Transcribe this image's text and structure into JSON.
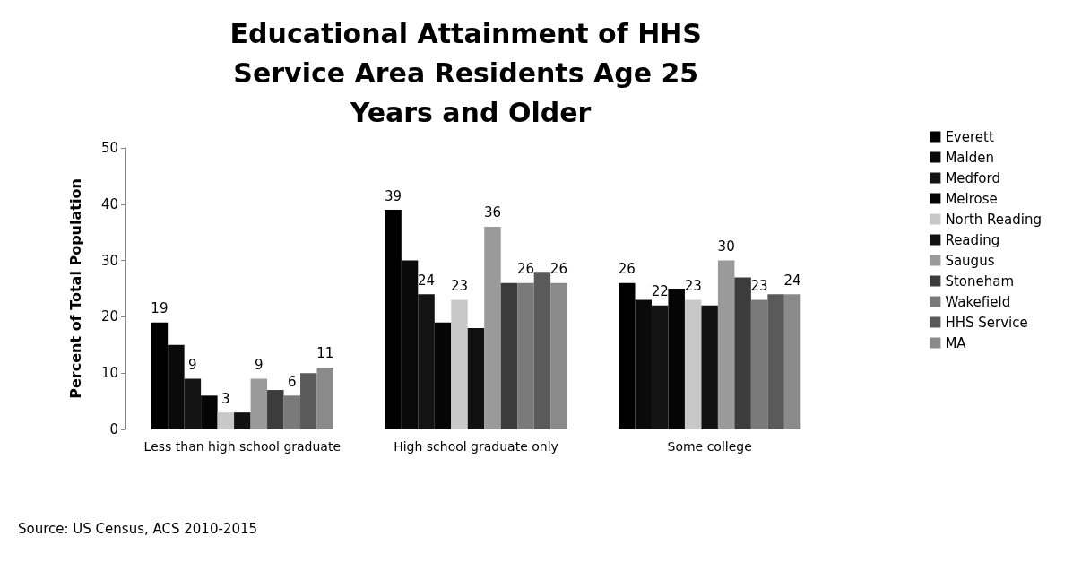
{
  "chart_data": {
    "type": "bar",
    "title": "Educational Attainment of HHS Service Area Residents Age 25 Years and Older",
    "ylabel": "Percent of Total Population",
    "categories": [
      "Less than high school graduate",
      "High school graduate only",
      "Some college"
    ],
    "series": [
      {
        "name": "Everett",
        "color": "#000000",
        "values": [
          19,
          39,
          26
        ],
        "value_labels": [
          "19",
          "39",
          "26"
        ]
      },
      {
        "name": "Malden",
        "color": "#0a0a0a",
        "values": [
          15,
          30,
          23
        ]
      },
      {
        "name": "Medford",
        "color": "#141414",
        "values": [
          9,
          24,
          22
        ],
        "value_labels": [
          "9",
          "24",
          "22"
        ]
      },
      {
        "name": "Melrose",
        "color": "#050505",
        "values": [
          6,
          19,
          25
        ]
      },
      {
        "name": "North Reading",
        "color": "#c8c8c8",
        "values": [
          3,
          23,
          23
        ],
        "value_labels": [
          "3",
          "23",
          "23"
        ]
      },
      {
        "name": "Reading",
        "color": "#111111",
        "values": [
          3,
          18,
          22
        ]
      },
      {
        "name": "Saugus",
        "color": "#9a9a9a",
        "values": [
          9,
          36,
          30
        ],
        "value_labels": [
          "9",
          "36",
          "30"
        ]
      },
      {
        "name": "Stoneham",
        "color": "#3c3c3c",
        "values": [
          7,
          26,
          27
        ]
      },
      {
        "name": "Wakefield",
        "color": "#7a7a7a",
        "values": [
          6,
          26,
          23
        ],
        "value_labels": [
          "6",
          "26",
          "23"
        ]
      },
      {
        "name": "HHS Service",
        "color": "#5a5a5a",
        "values": [
          10,
          28,
          24
        ]
      },
      {
        "name": "MA",
        "color": "#8a8a8a",
        "values": [
          11,
          26,
          24
        ],
        "value_labels": [
          "11",
          "26",
          "24"
        ]
      }
    ],
    "ylim": [
      0,
      50
    ],
    "yticks": [
      0,
      10,
      20,
      30,
      40,
      50
    ],
    "grid": false,
    "legend": "right",
    "annotations": [
      "Source: US Census, ACS 2010-2015"
    ]
  }
}
